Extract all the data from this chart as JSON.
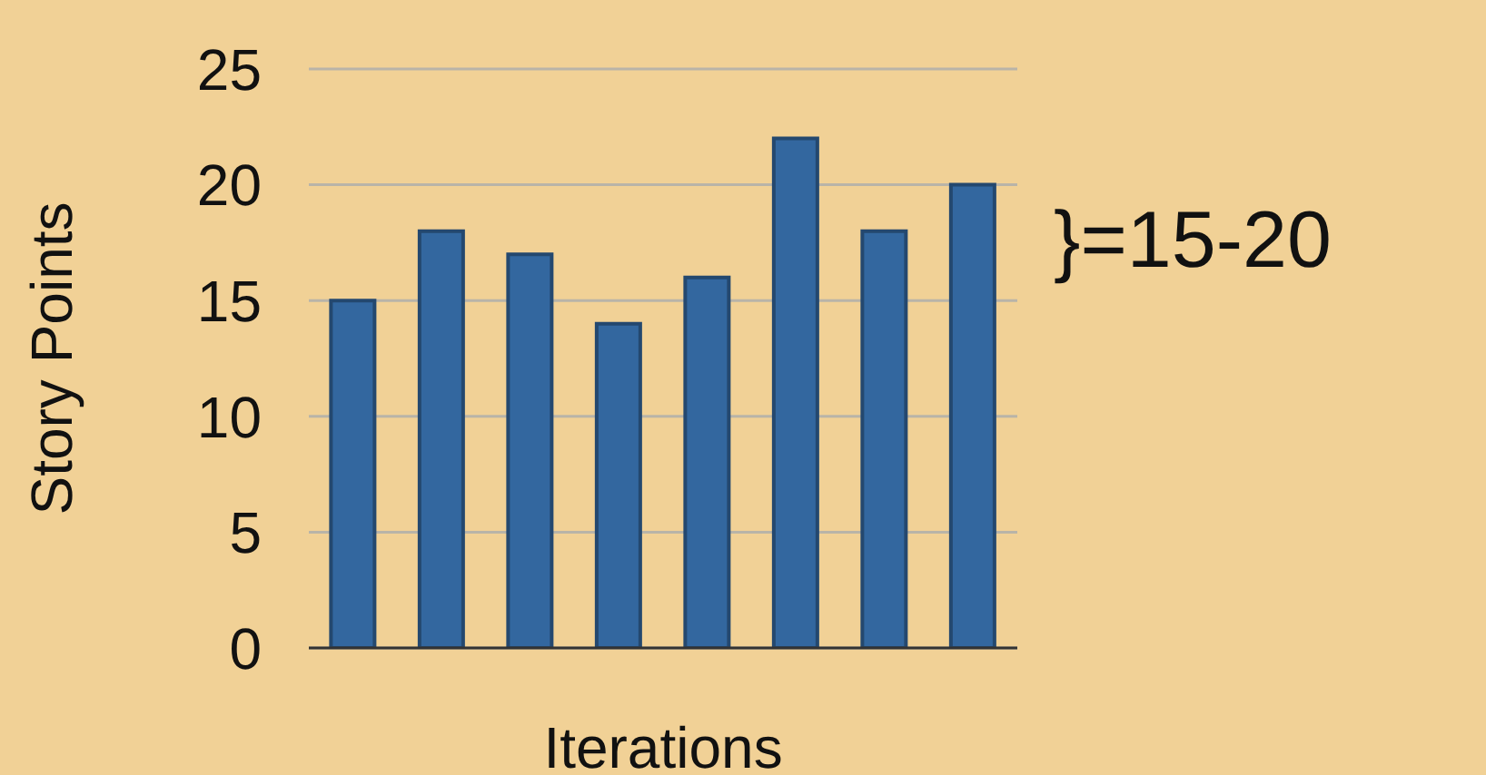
{
  "chart_data": {
    "type": "bar",
    "xlabel": "Iterations",
    "ylabel": "Story Points",
    "categories": [
      null,
      null,
      null,
      null,
      null,
      null,
      null,
      null
    ],
    "values": [
      15,
      18,
      17,
      14,
      16,
      22,
      18,
      20
    ],
    "color": "#33679f",
    "ylim": [
      0,
      25
    ],
    "yticks": [
      0,
      5,
      10,
      15,
      20,
      25
    ],
    "grid": "y",
    "tick_labels": "y",
    "annotations": [
      "}=15-20"
    ]
  }
}
